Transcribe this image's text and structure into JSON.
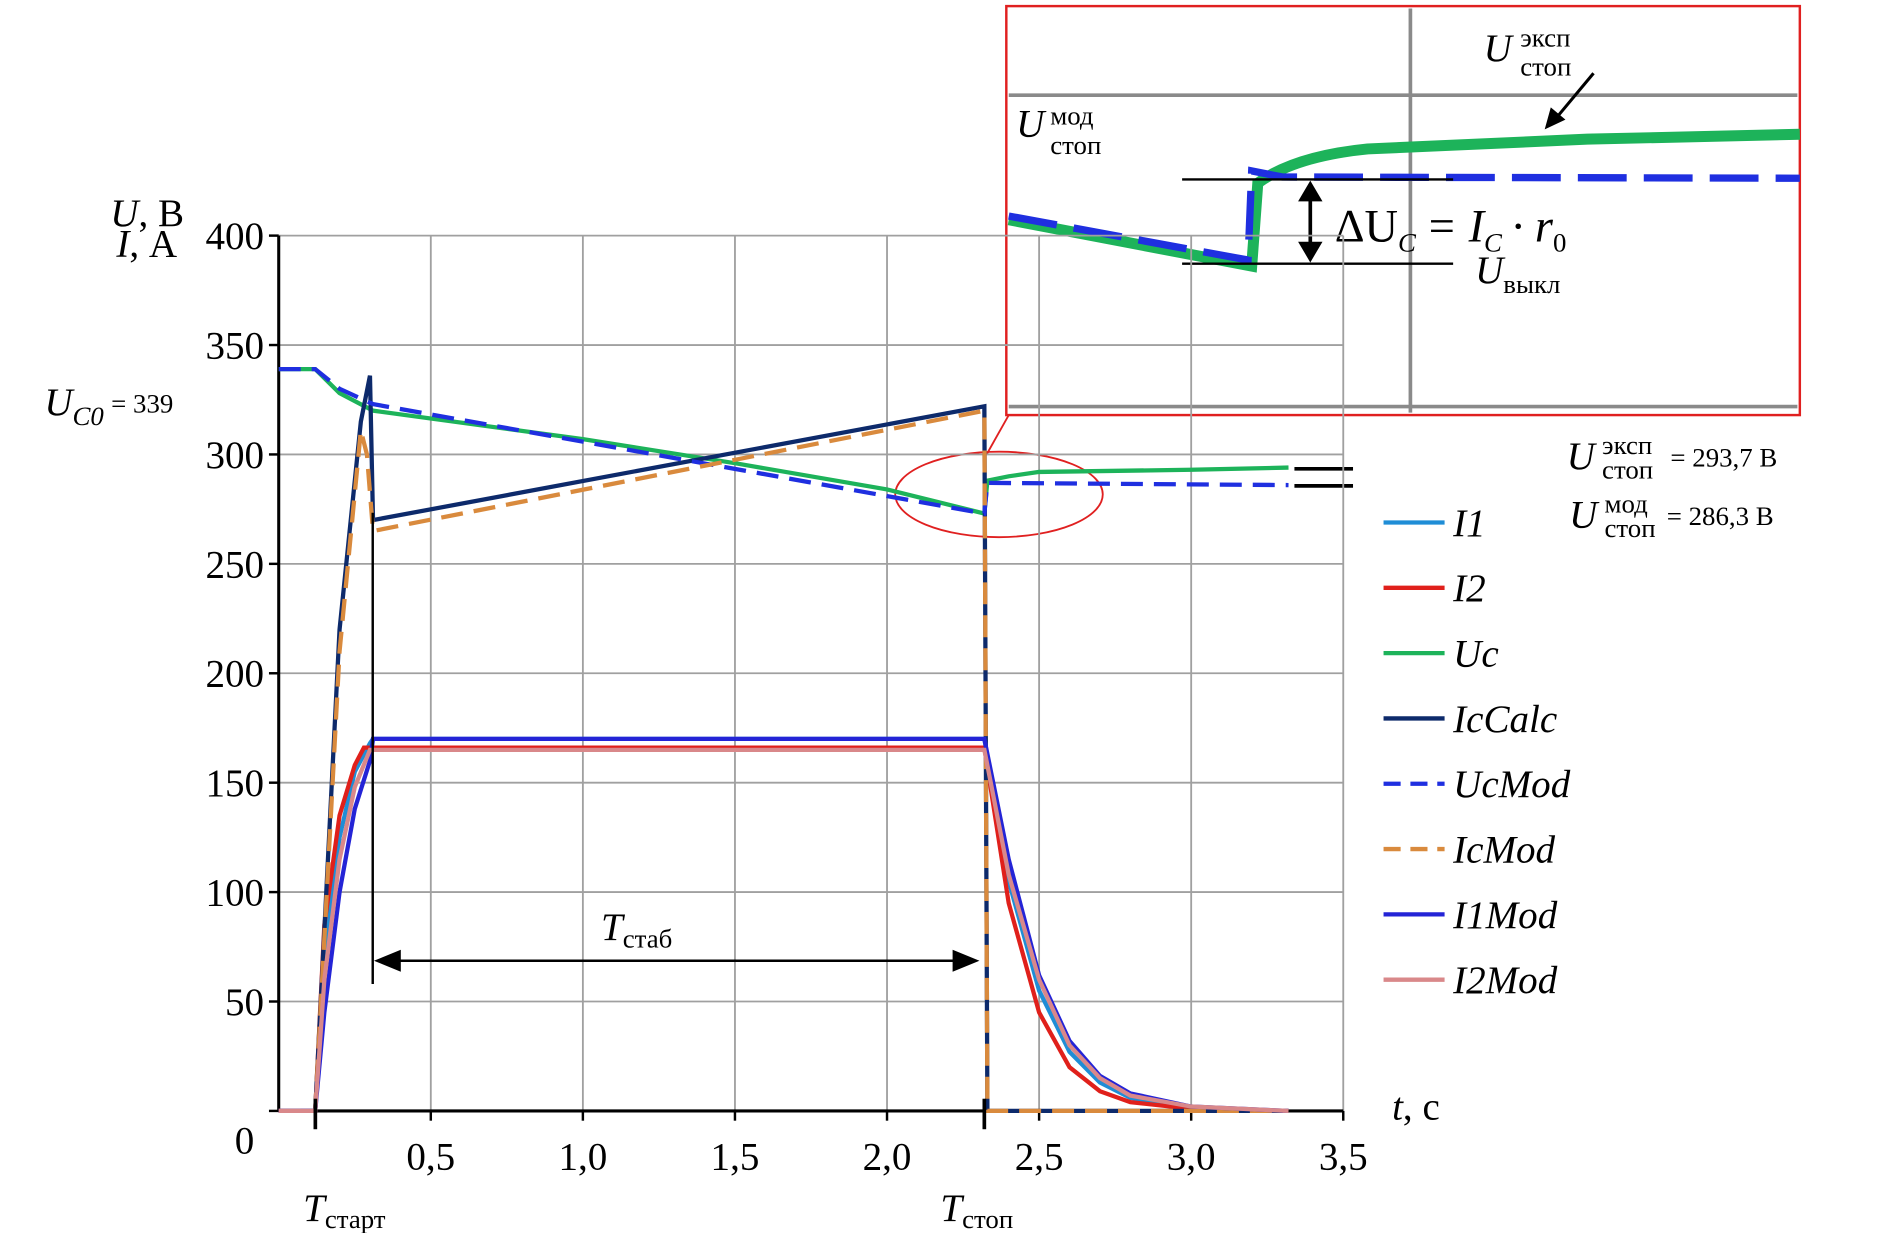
{
  "chart_data": {
    "type": "line",
    "x_label": [
      "t",
      ", с"
    ],
    "y_label": [
      [
        "U",
        ", В"
      ],
      [
        "I",
        ", А"
      ]
    ],
    "xlim": [
      0,
      3.5
    ],
    "ylim": [
      0,
      400
    ],
    "xticks": [
      {
        "value": 0.5,
        "label": "0,5"
      },
      {
        "value": 1.0,
        "label": "1,0"
      },
      {
        "value": 1.5,
        "label": "1,5"
      },
      {
        "value": 2.0,
        "label": "2,0"
      },
      {
        "value": 2.5,
        "label": "2,5"
      },
      {
        "value": 3.0,
        "label": "3,0"
      },
      {
        "value": 3.5,
        "label": "3,5"
      }
    ],
    "yticks": [
      0,
      50,
      100,
      150,
      200,
      250,
      300,
      350,
      400
    ],
    "grid": true,
    "legend": "right",
    "series": [
      {
        "name": "I1",
        "color": "#1f8dd6",
        "dash": false,
        "x": [
          0,
          0.12,
          0.15,
          0.2,
          0.25,
          0.3,
          0.31,
          2.32,
          2.4,
          2.5,
          2.6,
          2.7,
          2.8,
          3.0,
          3.32
        ],
        "values": [
          0,
          0,
          70,
          125,
          155,
          168,
          170,
          170,
          105,
          55,
          27,
          13,
          6,
          1,
          0
        ]
      },
      {
        "name": "I2",
        "color": "#e0201b",
        "dash": false,
        "x": [
          0,
          0.12,
          0.15,
          0.2,
          0.25,
          0.28,
          2.32,
          2.4,
          2.5,
          2.6,
          2.7,
          2.8,
          3.0,
          3.32
        ],
        "values": [
          0,
          0,
          85,
          135,
          158,
          166,
          166,
          95,
          45,
          20,
          9,
          4,
          1,
          0
        ]
      },
      {
        "name": "Uc",
        "color": "#1db35a",
        "dash": false,
        "x": [
          0,
          0.12,
          0.2,
          0.31,
          1.0,
          1.5,
          2.0,
          2.32,
          2.33,
          2.4,
          2.5,
          3.0,
          3.32
        ],
        "values": [
          339,
          339,
          328,
          320,
          307,
          296,
          284,
          273,
          288,
          290,
          292,
          293,
          294
        ]
      },
      {
        "name": "IcCalc",
        "color": "#0d2a6b",
        "dash": false,
        "x": [
          0,
          0.12,
          0.2,
          0.27,
          0.3,
          0.31,
          2.32,
          2.33,
          3.32
        ],
        "values": [
          0,
          0,
          220,
          315,
          336,
          270,
          322,
          0,
          0
        ]
      },
      {
        "name": "UcMod",
        "color": "#1f2fe0",
        "dash": true,
        "x": [
          0,
          0.12,
          0.2,
          0.31,
          2.32,
          2.33,
          3.32
        ],
        "values": [
          339,
          339,
          330,
          323,
          273,
          287,
          286
        ]
      },
      {
        "name": "IcMod",
        "color": "#d98a3d",
        "dash": true,
        "x": [
          0,
          0.12,
          0.2,
          0.27,
          0.29,
          0.31,
          2.32,
          2.33,
          3.32
        ],
        "values": [
          0,
          0,
          210,
          311,
          300,
          265,
          320,
          0,
          0
        ]
      },
      {
        "name": "I1Mod",
        "color": "#2424d6",
        "dash": false,
        "x": [
          0,
          0.12,
          0.15,
          0.2,
          0.25,
          0.3,
          0.31,
          2.32,
          2.4,
          2.5,
          2.6,
          2.7,
          2.8,
          3.0,
          3.32
        ],
        "values": [
          0,
          0,
          45,
          100,
          138,
          160,
          170,
          170,
          115,
          62,
          32,
          16,
          8,
          2,
          0
        ]
      },
      {
        "name": "I2Mod",
        "color": "#d9888a",
        "dash": false,
        "x": [
          0,
          0.12,
          0.15,
          0.2,
          0.25,
          0.3,
          2.32,
          2.4,
          2.5,
          2.6,
          2.7,
          2.8,
          3.0,
          3.32
        ],
        "values": [
          0,
          0,
          60,
          115,
          148,
          165,
          165,
          108,
          60,
          30,
          15,
          7,
          2,
          0
        ]
      }
    ],
    "annotations": {
      "uc0": [
        "U",
        "C0",
        "= 339"
      ],
      "t_start": [
        "T",
        "старт"
      ],
      "t_stop": [
        "T",
        "стоп"
      ],
      "t_stab": [
        "T",
        "стаб"
      ],
      "u_exp": [
        "U",
        "эксп",
        "стоп",
        "= 293,7 В"
      ],
      "u_mod": [
        "U",
        "мод",
        "стоп",
        "= 286,3 В"
      ],
      "inset_exp": [
        "U",
        "эксп",
        "стоп"
      ],
      "inset_mod": [
        "U",
        "мод",
        "стоп"
      ],
      "inset_delta": [
        "ΔU",
        "C",
        "= I",
        "C",
        "· r",
        "0"
      ],
      "inset_off": [
        "U",
        "выкл"
      ]
    }
  }
}
